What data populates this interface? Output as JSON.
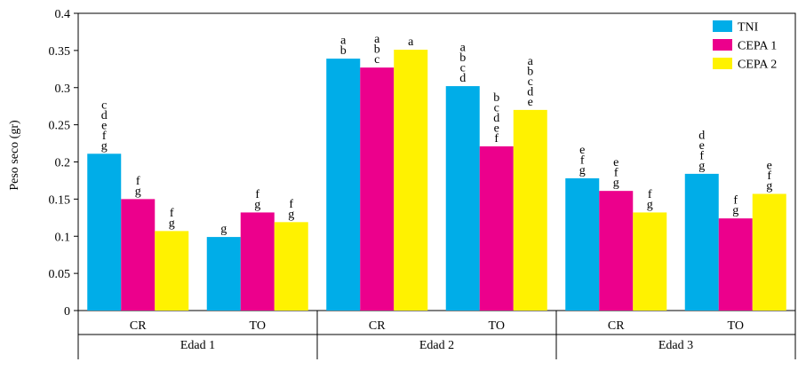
{
  "chart_data": {
    "type": "bar",
    "ylabel": "Peso seco (gr)",
    "ylim": [
      0,
      0.4
    ],
    "yticks": [
      "0",
      "0.05",
      "0.1",
      "0.15",
      "0.2",
      "0.25",
      "0.3",
      "0.35",
      "0.4"
    ],
    "groups": [
      {
        "name": "Edad 1",
        "subcategories": [
          "CR",
          "TO"
        ]
      },
      {
        "name": "Edad 2",
        "subcategories": [
          "CR",
          "TO"
        ]
      },
      {
        "name": "Edad 3",
        "subcategories": [
          "CR",
          "TO"
        ]
      }
    ],
    "series": [
      {
        "name": "TNI",
        "color": "#00ade8",
        "values": [
          0.211,
          0.099,
          0.339,
          0.302,
          0.178,
          0.184
        ],
        "letters": [
          "c\nd\ne\nf\ng",
          "g",
          "a\nb",
          "a\nb\nc\nd",
          "e\nf\ng",
          "d\ne\nf\ng"
        ]
      },
      {
        "name": "CEPA 1",
        "color": "#ec008c",
        "values": [
          0.15,
          0.132,
          0.327,
          0.221,
          0.161,
          0.124
        ],
        "letters": [
          "f\ng",
          "f\ng",
          "a\nb\nc",
          "b\nc\nd\ne\nf",
          "e\nf\ng",
          "f\ng"
        ]
      },
      {
        "name": "CEPA 2",
        "color": "#fff200",
        "values": [
          0.107,
          0.119,
          0.351,
          0.27,
          0.132,
          0.157
        ],
        "letters": [
          "f\ng",
          "f\ng",
          "a",
          "a\nb\nc\nd\ne",
          "f\ng",
          "e\nf\ng"
        ]
      }
    ],
    "legend": "top-right",
    "grid": false
  }
}
